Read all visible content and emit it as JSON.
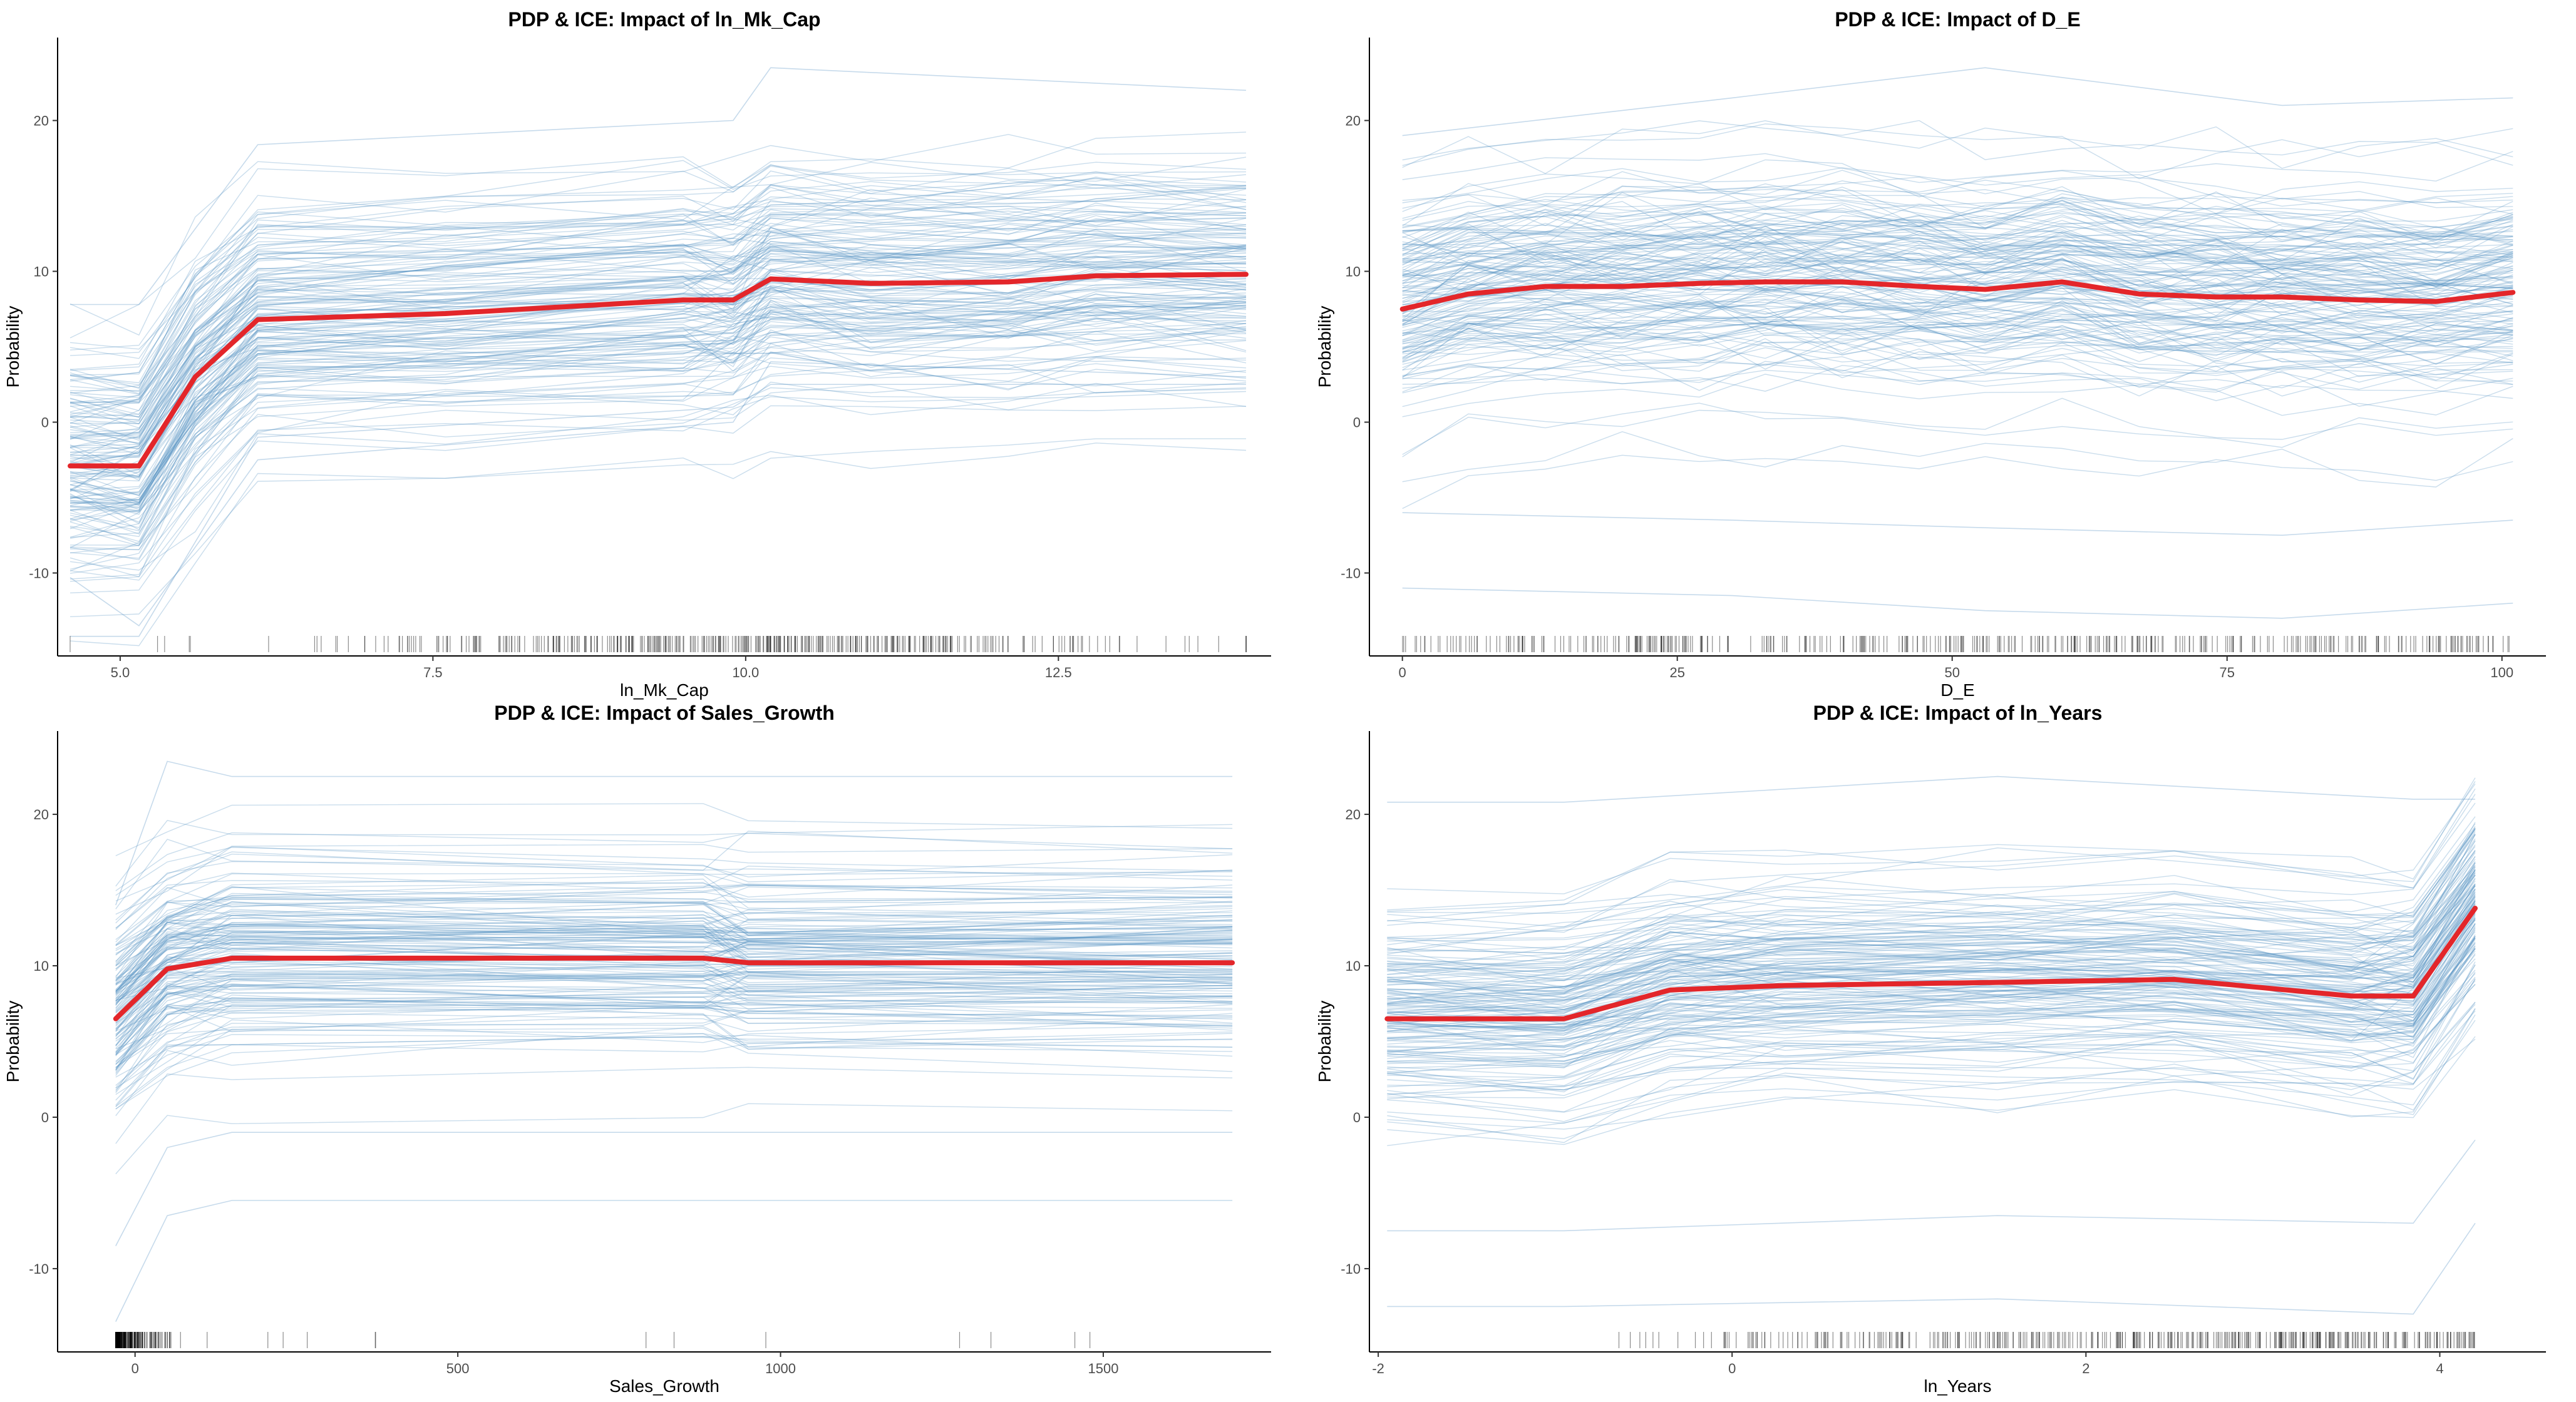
{
  "colors": {
    "ice_line": "#5b95c5",
    "pdp_line": "#e3262a",
    "axis": "#000000",
    "rug": "#000000",
    "tick_text": "#4d4d4d"
  },
  "chart_data": [
    {
      "type": "line",
      "title": "PDP & ICE: Impact of ln_Mk_Cap",
      "xlabel": "ln_Mk_Cap",
      "ylabel": "Probability",
      "xlim": [
        4.5,
        14.2
      ],
      "ylim": [
        -15.5,
        25.5
      ],
      "x_ticks": [
        5.0,
        7.5,
        10.0,
        12.5
      ],
      "x_tick_labels": [
        "5.0",
        "7.5",
        "10.0",
        "12.5"
      ],
      "y_ticks": [
        -10,
        0,
        10,
        20
      ],
      "y_tick_labels": [
        "-10",
        "0",
        "10",
        "20"
      ],
      "grid": false,
      "grid_x": [
        4.6,
        5.15,
        5.6,
        6.1,
        7.6,
        9.5,
        9.9,
        10.2,
        11.0,
        12.1,
        12.8,
        14.0
      ],
      "pdp": [
        -2.9,
        -2.9,
        3.0,
        6.8,
        7.2,
        8.1,
        8.1,
        9.5,
        9.2,
        9.3,
        9.7,
        9.8
      ],
      "ice_sample": [
        {
          "x": [
            4.6,
            5.15,
            6.1,
            9.9,
            10.2,
            14.0
          ],
          "y": [
            7.8,
            7.8,
            18.4,
            20.0,
            23.5,
            22.0
          ]
        },
        {
          "x": [
            4.6,
            5.15,
            6.1,
            9.9,
            10.2,
            14.0
          ],
          "y": [
            -10.3,
            -13.5,
            -2.5,
            0.0,
            4.0,
            3.0
          ]
        },
        {
          "x": [
            4.6,
            5.15,
            6.1,
            9.9,
            10.2,
            14.0
          ],
          "y": [
            -14.2,
            -14.2,
            -1.0,
            1.0,
            2.5,
            2.5
          ]
        }
      ],
      "ice_count": 160,
      "rug_range": [
        4.6,
        14.0
      ]
    },
    {
      "type": "line",
      "title": "PDP & ICE: Impact of D_E",
      "xlabel": "D_E",
      "ylabel": "Probability",
      "xlim": [
        -3,
        104
      ],
      "ylim": [
        -15.5,
        25.5
      ],
      "x_ticks": [
        0,
        25,
        50,
        75,
        100
      ],
      "x_tick_labels": [
        "0",
        "25",
        "50",
        "75",
        "100"
      ],
      "y_ticks": [
        -10,
        0,
        10,
        20
      ],
      "y_tick_labels": [
        "-10",
        "0",
        "10",
        "20"
      ],
      "grid": false,
      "grid_x": [
        0,
        6,
        13,
        20,
        27,
        33,
        40,
        47,
        53,
        60,
        67,
        74,
        80,
        87,
        94,
        101
      ],
      "pdp": [
        7.5,
        8.5,
        9.0,
        9.0,
        9.2,
        9.3,
        9.3,
        9.0,
        8.8,
        9.3,
        8.5,
        8.3,
        8.3,
        8.1,
        8.0,
        8.6
      ],
      "ice_sample": [
        {
          "x": [
            0,
            30,
            53,
            80,
            101
          ],
          "y": [
            -6.0,
            -6.5,
            -7.0,
            -7.5,
            -6.5
          ]
        },
        {
          "x": [
            0,
            30,
            53,
            80,
            101
          ],
          "y": [
            -11.0,
            -11.5,
            -12.5,
            -13.0,
            -12.0
          ]
        },
        {
          "x": [
            0,
            30,
            53,
            80,
            101
          ],
          "y": [
            19.0,
            21.5,
            23.5,
            21.0,
            21.5
          ]
        }
      ],
      "ice_count": 160,
      "rug_range": [
        0,
        101
      ]
    },
    {
      "type": "line",
      "title": "PDP & ICE: Impact of Sales_Growth",
      "xlabel": "Sales_Growth",
      "ylabel": "Probability",
      "xlim": [
        -120,
        1760
      ],
      "ylim": [
        -15.5,
        25.5
      ],
      "x_ticks": [
        0,
        500,
        1000,
        1500
      ],
      "x_tick_labels": [
        "0",
        "500",
        "1000",
        "1500"
      ],
      "y_ticks": [
        -10,
        0,
        10,
        20
      ],
      "y_tick_labels": [
        "-10",
        "0",
        "10",
        "20"
      ],
      "grid": false,
      "grid_x": [
        -30,
        50,
        150,
        880,
        950,
        1700
      ],
      "pdp": [
        6.5,
        9.8,
        10.5,
        10.5,
        10.2,
        10.2
      ],
      "ice_sample": [
        {
          "x": [
            -30,
            50,
            150,
            1700
          ],
          "y": [
            -13.5,
            -6.5,
            -5.5,
            -5.5
          ]
        },
        {
          "x": [
            -30,
            50,
            150,
            1700
          ],
          "y": [
            -8.5,
            -2.0,
            -1.0,
            -1.0
          ]
        },
        {
          "x": [
            -30,
            50,
            150,
            1700
          ],
          "y": [
            14.0,
            23.5,
            22.5,
            22.5
          ]
        }
      ],
      "ice_count": 160,
      "rug_range": [
        -30,
        1700
      ]
    },
    {
      "type": "line",
      "title": "PDP & ICE: Impact of ln_Years",
      "xlabel": "ln_Years",
      "ylabel": "Probability",
      "xlim": [
        -2.05,
        4.6
      ],
      "ylim": [
        -15.5,
        25.5
      ],
      "x_ticks": [
        -2,
        0,
        2,
        4
      ],
      "x_tick_labels": [
        "-2",
        "0",
        "2",
        "4"
      ],
      "y_ticks": [
        -10,
        0,
        10,
        20
      ],
      "y_tick_labels": [
        "-10",
        "0",
        "10",
        "20"
      ],
      "grid": false,
      "grid_x": [
        -1.95,
        -0.95,
        -0.35,
        0.3,
        1.5,
        2.5,
        3.5,
        3.85,
        4.2
      ],
      "pdp": [
        6.5,
        6.5,
        8.4,
        8.7,
        8.9,
        9.1,
        8.0,
        8.0,
        13.8
      ],
      "ice_sample": [
        {
          "x": [
            -1.95,
            -0.95,
            1.5,
            3.85,
            4.2
          ],
          "y": [
            -7.5,
            -7.5,
            -6.5,
            -7.0,
            -1.5
          ]
        },
        {
          "x": [
            -1.95,
            -0.95,
            1.5,
            3.85,
            4.2
          ],
          "y": [
            -12.5,
            -12.5,
            -12.0,
            -13.0,
            -7.0
          ]
        },
        {
          "x": [
            -1.95,
            -0.95,
            1.5,
            3.85,
            4.2
          ],
          "y": [
            20.8,
            20.8,
            22.5,
            21.0,
            21.0
          ]
        }
      ],
      "ice_count": 160,
      "rug_range": [
        -0.8,
        4.2
      ]
    }
  ]
}
